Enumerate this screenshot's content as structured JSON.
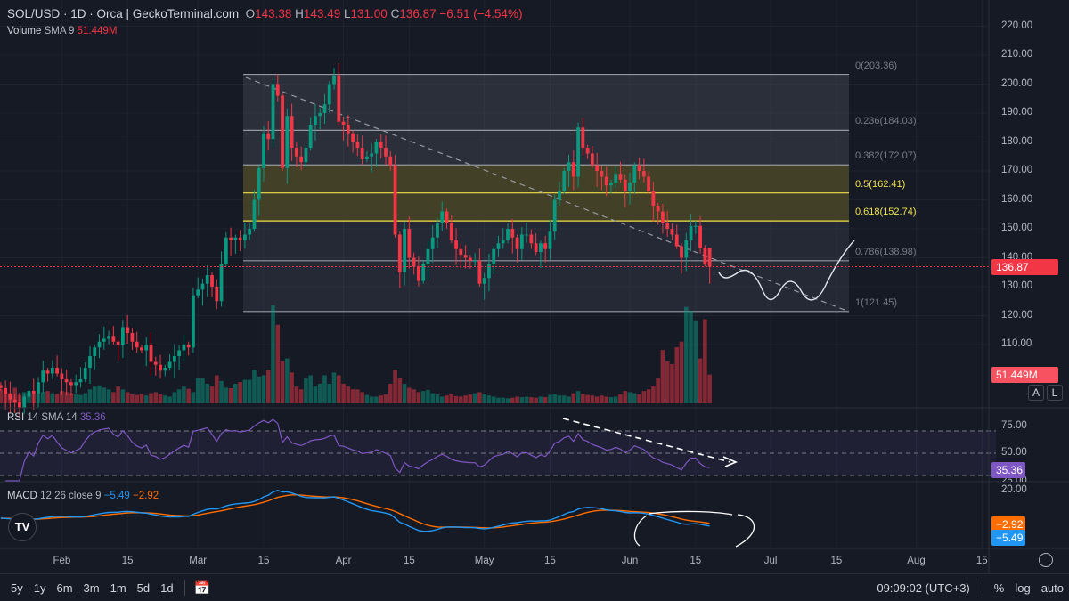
{
  "header": {
    "symbol": "SOL/USD · 1D · Orca | GeckoTerminal.com",
    "o_label": "O",
    "o": "143.38",
    "h_label": "H",
    "h": "143.49",
    "l_label": "L",
    "l": "131.00",
    "c_label": "C",
    "c": "136.87",
    "change": "−6.51 (−4.54%)"
  },
  "volume_legend": {
    "name": "Volume",
    "params": "SMA 9",
    "value": "51.449M"
  },
  "rsi_legend": {
    "name": "RSI",
    "params": "14 SMA 14",
    "value": "35.36"
  },
  "macd_legend": {
    "name": "MACD",
    "params": "12 26 close 9",
    "macd": "−5.49",
    "signal": "−2.92"
  },
  "price_axis": [
    "220.00",
    "210.00",
    "200.00",
    "190.00",
    "180.00",
    "170.00",
    "160.00",
    "150.00",
    "140.00",
    "130.00",
    "120.00",
    "110.00"
  ],
  "badges": {
    "price": "136.87",
    "volume": "51.449M",
    "rsi": "35.36",
    "signal": "−2.92",
    "macd": "−5.49"
  },
  "rsi_axis": [
    "75.00",
    "50.00",
    "25.00"
  ],
  "macd_axis": [
    "20.00"
  ],
  "scale_buttons": [
    "A",
    "L"
  ],
  "fib_levels": [
    {
      "label": "0(203.36)",
      "price": 203.36,
      "key": false
    },
    {
      "label": "0.236(184.03)",
      "price": 184.03,
      "key": false
    },
    {
      "label": "0.382(172.07)",
      "price": 172.07,
      "key": false
    },
    {
      "label": "0.5(162.41)",
      "price": 162.41,
      "key": true
    },
    {
      "label": "0.618(152.74)",
      "price": 152.74,
      "key": true
    },
    {
      "label": "0.786(138.98)",
      "price": 138.98,
      "key": false
    },
    {
      "label": "1(121.45)",
      "price": 121.45,
      "key": false
    }
  ],
  "time_axis": [
    {
      "label": "Feb",
      "day": 31
    },
    {
      "label": "15",
      "day": 45
    },
    {
      "label": "Mar",
      "day": 60
    },
    {
      "label": "15",
      "day": 74
    },
    {
      "label": "Apr",
      "day": 91
    },
    {
      "label": "15",
      "day": 105
    },
    {
      "label": "May",
      "day": 121
    },
    {
      "label": "15",
      "day": 135
    },
    {
      "label": "Jun",
      "day": 152
    },
    {
      "label": "15",
      "day": 166
    },
    {
      "label": "Jul",
      "day": 182
    },
    {
      "label": "15",
      "day": 196
    },
    {
      "label": "Aug",
      "day": 213
    },
    {
      "label": "15",
      "day": 227
    }
  ],
  "toolbar": {
    "ranges": [
      "5y",
      "1y",
      "6m",
      "3m",
      "1m",
      "5d",
      "1d"
    ],
    "clock": "09:09:02 (UTC+3)",
    "percent": "%",
    "log": "log",
    "auto": "auto"
  },
  "logo_text": "TV",
  "colors": {
    "up": "#089981",
    "down": "#f23645",
    "rsi": "#7e57c2",
    "macd": "#2196f3",
    "signal": "#ff6d00",
    "fib_zone": "#4a4827",
    "fib_key": "#f3e14a"
  },
  "chart_data": {
    "type": "candlestick",
    "title": "SOL/USD · 1D · Orca",
    "start_day": 18,
    "last_candle": {
      "open": 143.38,
      "high": 143.49,
      "low": 131.0,
      "close": 136.87
    },
    "close": [
      95,
      93,
      91,
      90,
      88,
      92,
      94,
      93,
      97,
      101,
      100,
      102,
      100,
      98,
      97,
      96,
      97,
      98,
      102,
      106,
      109,
      111,
      112,
      113,
      111,
      110,
      116,
      114,
      111,
      109,
      108,
      110,
      104,
      103,
      101,
      102,
      104,
      106,
      108,
      110,
      109,
      127,
      129,
      131,
      134,
      130,
      125,
      138,
      147,
      146,
      147,
      146,
      148,
      150,
      160,
      171,
      183,
      181,
      200,
      196,
      171,
      189,
      178,
      175,
      173,
      178,
      186,
      189,
      190,
      193,
      200,
      203,
      187,
      186,
      183,
      180,
      178,
      174,
      175,
      176,
      180,
      178,
      175,
      172,
      148,
      135,
      150,
      140,
      137,
      132,
      138,
      143,
      147,
      152,
      156,
      152,
      146,
      143,
      141,
      140,
      139,
      139,
      131,
      133,
      138,
      143,
      145,
      146,
      150,
      147,
      143,
      148,
      148,
      145,
      142,
      145,
      143,
      149,
      160,
      163,
      170,
      173,
      168,
      185,
      178,
      176,
      172,
      170,
      168,
      165,
      166,
      169,
      167,
      163,
      166,
      172,
      170,
      168,
      163,
      158,
      156,
      152,
      150,
      148,
      144,
      140,
      146,
      151,
      151,
      143.38,
      138,
      136.87
    ],
    "volume_m": [
      25,
      20,
      18,
      28,
      15,
      20,
      18,
      17,
      16,
      20,
      22,
      18,
      17,
      22,
      20,
      18,
      16,
      15,
      18,
      25,
      30,
      32,
      28,
      25,
      20,
      30,
      25,
      20,
      16,
      15,
      17,
      14,
      18,
      20,
      16,
      14,
      12,
      20,
      25,
      30,
      26,
      20,
      45,
      45,
      35,
      30,
      50,
      40,
      28,
      27,
      35,
      38,
      42,
      42,
      60,
      48,
      50,
      60,
      175,
      140,
      75,
      80,
      55,
      30,
      25,
      45,
      50,
      30,
      35,
      50,
      35,
      55,
      50,
      35,
      30,
      25,
      25,
      20,
      15,
      12,
      12,
      14,
      16,
      35,
      60,
      45,
      35,
      28,
      25,
      20,
      22,
      24,
      18,
      16,
      12,
      14,
      16,
      13,
      12,
      14,
      16,
      18,
      20,
      16,
      14,
      12,
      10,
      10,
      9,
      10,
      12,
      11,
      12,
      11,
      10,
      12,
      11,
      15,
      16,
      14,
      14,
      12,
      18,
      22,
      17,
      15,
      14,
      12,
      14,
      12,
      11,
      12,
      16,
      22,
      20,
      18,
      16,
      22,
      25,
      30,
      45,
      95,
      75,
      70,
      100,
      110,
      172,
      165,
      148,
      80,
      150,
      51.449
    ],
    "ylim": [
      105,
      225
    ],
    "rsi_levels": [
      75,
      50,
      25
    ]
  }
}
